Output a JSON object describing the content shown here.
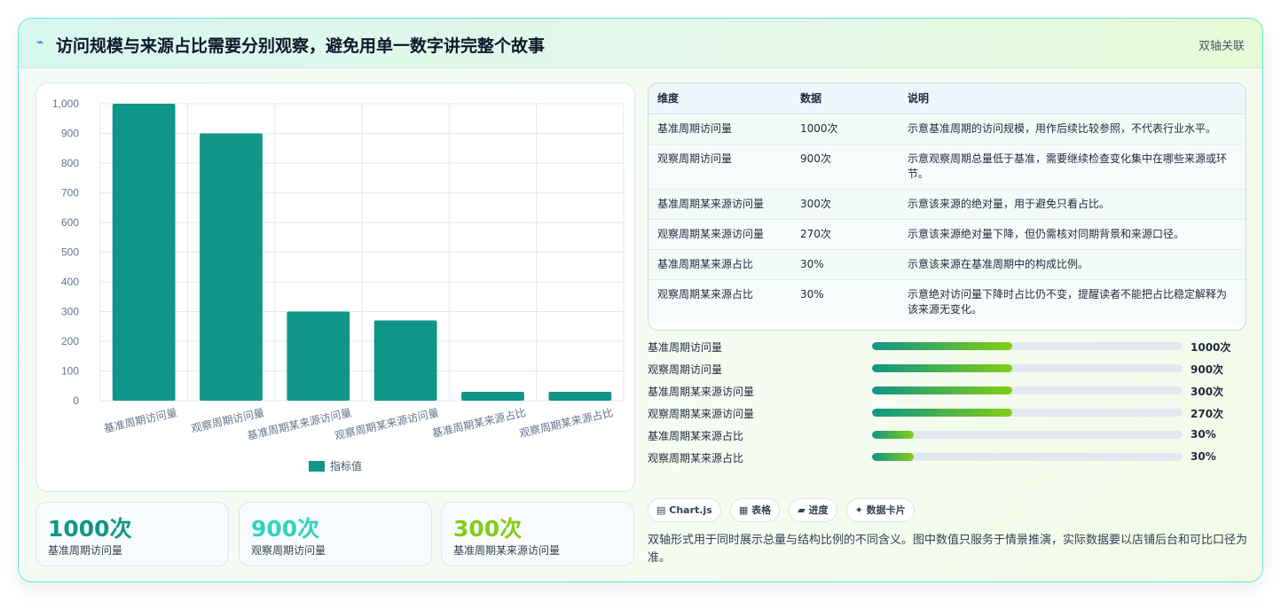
{
  "header": {
    "icon": "trend-icon",
    "title": "访问规模与来源占比需要分别观察，避免用单一数字讲完整个故事",
    "badge": "双轴关联"
  },
  "chart_data": {
    "type": "bar",
    "categories": [
      "基准周期访问量",
      "观察周期访问量",
      "基准周期某来源访问量",
      "观察周期某来源访问量",
      "基准周期某来源占比",
      "观察周期某来源占比"
    ],
    "series": [
      {
        "name": "指标值",
        "values": [
          1000,
          900,
          300,
          270,
          30,
          30
        ],
        "color": "#0f9688"
      }
    ],
    "ylim": [
      0,
      1000
    ],
    "yticks": [
      0,
      100,
      200,
      300,
      400,
      500,
      600,
      700,
      800,
      900,
      1000
    ],
    "ytick_labels": [
      "0",
      "100",
      "200",
      "300",
      "400",
      "500",
      "600",
      "700",
      "800",
      "900",
      "1,000"
    ],
    "grid": true,
    "legend": "bottom"
  },
  "kpis": [
    {
      "value": "1000次",
      "label": "基准周期访问量",
      "color": "#0f9688"
    },
    {
      "value": "900次",
      "label": "观察周期访问量",
      "color": "#2dd4bf"
    },
    {
      "value": "300次",
      "label": "基准周期某来源访问量",
      "color": "#84cc16"
    }
  ],
  "table": {
    "headers": [
      "维度",
      "数据",
      "说明"
    ],
    "rows": [
      [
        "基准周期访问量",
        "1000次",
        "示意基准周期的访问规模，用作后续比较参照，不代表行业水平。"
      ],
      [
        "观察周期访问量",
        "900次",
        "示意观察周期总量低于基准，需要继续检查变化集中在哪些来源或环节。"
      ],
      [
        "基准周期某来源访问量",
        "300次",
        "示意该来源的绝对量，用于避免只看占比。"
      ],
      [
        "观察周期某来源访问量",
        "270次",
        "示意该来源绝对量下降，但仍需核对同期背景和来源口径。"
      ],
      [
        "基准周期某来源占比",
        "30%",
        "示意该来源在基准周期中的构成比例。"
      ],
      [
        "观察周期某来源占比",
        "30%",
        "示意绝对访问量下降时占比仍不变，提醒读者不能把占比稳定解释为该来源无变化。"
      ]
    ]
  },
  "progress": [
    {
      "label": "基准周期访问量",
      "value": "1000次",
      "fraction": 0.45
    },
    {
      "label": "观察周期访问量",
      "value": "900次",
      "fraction": 0.45
    },
    {
      "label": "基准周期某来源访问量",
      "value": "300次",
      "fraction": 0.45
    },
    {
      "label": "观察周期某来源访问量",
      "value": "270次",
      "fraction": 0.45
    },
    {
      "label": "基准周期某来源占比",
      "value": "30%",
      "fraction": 0.135
    },
    {
      "label": "观察周期某来源占比",
      "value": "30%",
      "fraction": 0.135
    }
  ],
  "tags": [
    {
      "icon": "▤",
      "label": "Chart.js"
    },
    {
      "icon": "▦",
      "label": "表格"
    },
    {
      "icon": "▰",
      "label": "进度"
    },
    {
      "icon": "✦",
      "label": "数据卡片"
    }
  ],
  "note": "双轴形式用于同时展示总量与结构比例的不同含义。图中数值只服务于情景推演，实际数据要以店铺后台和可比口径为准。"
}
